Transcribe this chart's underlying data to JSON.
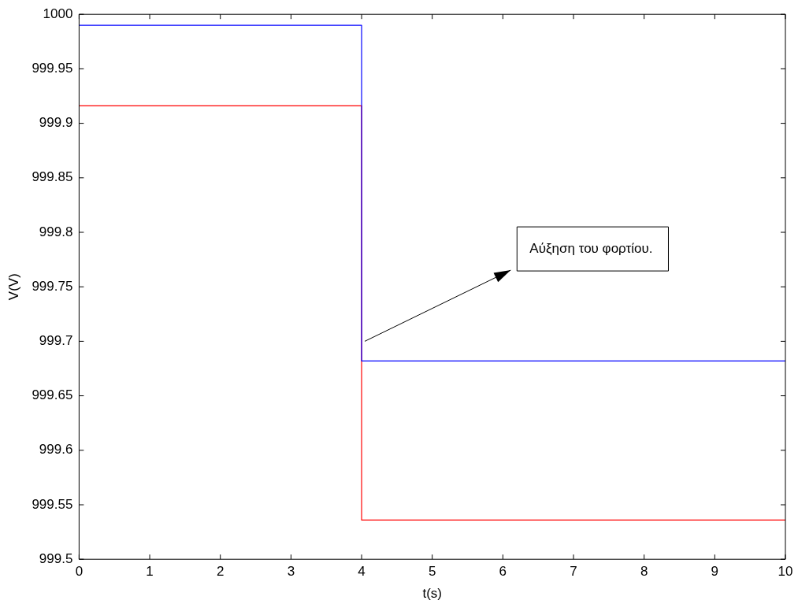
{
  "chart_data": {
    "type": "step",
    "xlabel": "t(s)",
    "ylabel": "V(V)",
    "x": [
      0,
      4,
      10
    ],
    "series": [
      {
        "color": "#0000ff",
        "values": [
          999.99,
          999.682,
          999.682
        ]
      },
      {
        "color": "#ff0000",
        "values": [
          999.916,
          999.536,
          999.536
        ]
      }
    ],
    "xlim": [
      0,
      10
    ],
    "xticks": [
      0,
      1,
      2,
      3,
      4,
      5,
      6,
      7,
      8,
      9,
      10
    ],
    "ylim": [
      999.5,
      1000
    ],
    "yticks": [
      999.5,
      999.55,
      999.6,
      999.65,
      999.7,
      999.75,
      999.8,
      999.85,
      999.9,
      999.95,
      1000
    ],
    "annotations": [
      "Αύξηση του φορτίου."
    ],
    "grid": false,
    "legend": false
  }
}
